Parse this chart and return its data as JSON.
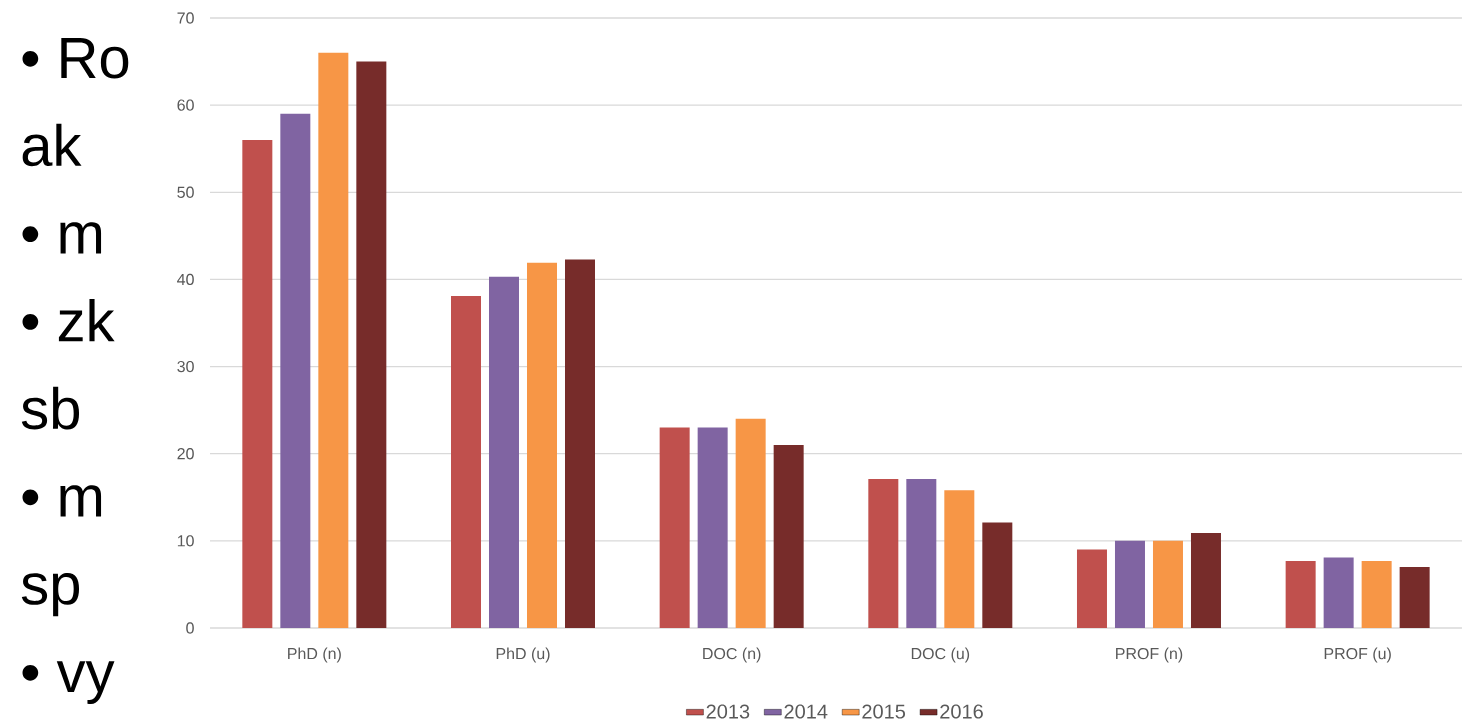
{
  "chart_data": {
    "type": "bar",
    "categories": [
      "PhD (n)",
      "PhD (u)",
      "DOC (n)",
      "DOC (u)",
      "PROF (n)",
      "PROF (u)"
    ],
    "series": [
      {
        "name": "2013",
        "color": "#c0504d",
        "values": [
          56,
          38.1,
          23,
          17.1,
          9,
          7.7
        ]
      },
      {
        "name": "2014",
        "color": "#8064a2",
        "values": [
          59,
          40.3,
          23,
          17.1,
          10,
          8.1
        ]
      },
      {
        "name": "2015",
        "color": "#f79646",
        "values": [
          66,
          41.9,
          24,
          15.8,
          10,
          7.7
        ]
      },
      {
        "name": "2016",
        "color": "#772c2a",
        "values": [
          65,
          42.3,
          21,
          12.1,
          10.9,
          7
        ]
      }
    ],
    "ylim": [
      0,
      70
    ],
    "yticks": [
      0,
      10,
      20,
      30,
      40,
      50,
      60,
      70
    ],
    "grid": "y",
    "legend": "bottom",
    "annotations": [
      "• Ro",
      "ak",
      "• m",
      "• zk",
      "sb",
      "• m",
      "sp",
      "• vy"
    ]
  }
}
